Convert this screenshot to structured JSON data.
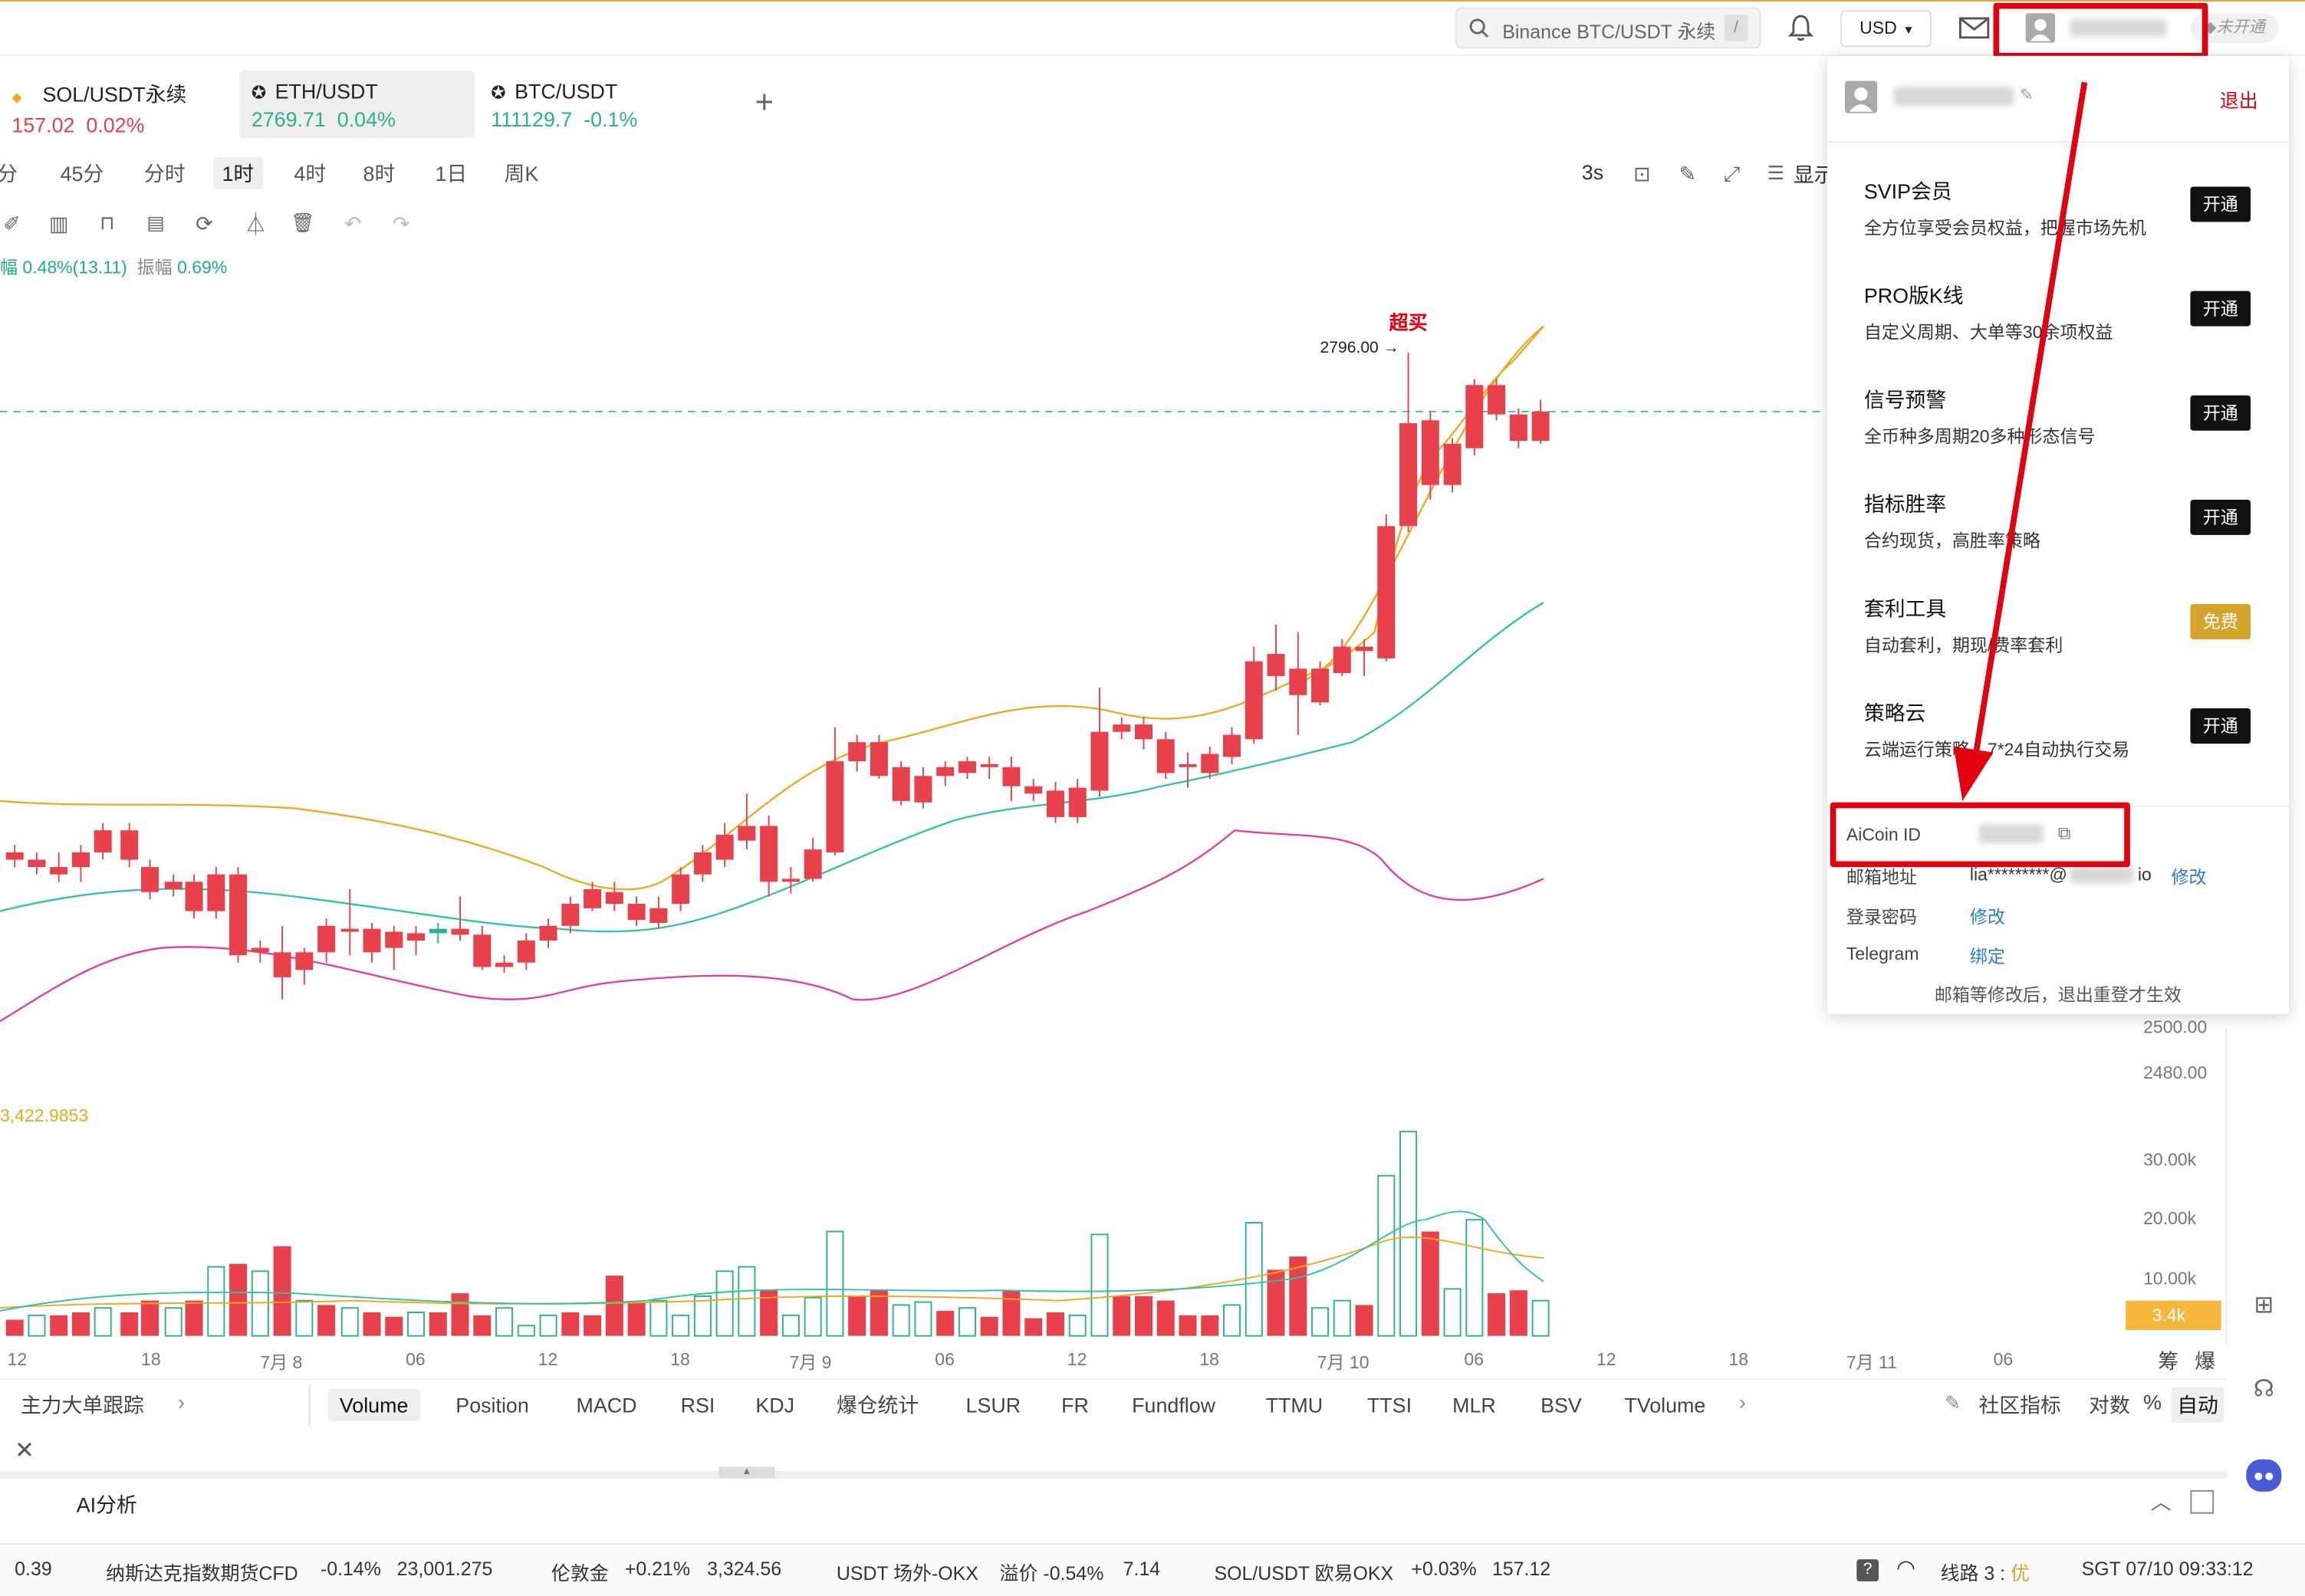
{
  "header": {
    "search_text": "Binance BTC/USDT 永续",
    "search_shortcut": "/",
    "currency": "USD",
    "membership_status": "未开通"
  },
  "tabs": [
    {
      "name": "SOL/USDT永续",
      "price": "157.02",
      "change": "0.02%",
      "dir": "up"
    },
    {
      "name": "ETH/USDT",
      "price": "2769.71",
      "change": "0.04%",
      "dir": "dn"
    },
    {
      "name": "BTC/USDT",
      "price": "111129.7",
      "change": "-0.1%",
      "dir": "dn"
    }
  ],
  "intervals": [
    "分",
    "45分",
    "分时",
    "1时",
    "4时",
    "8时",
    "1日",
    "周K"
  ],
  "active_interval": "1时",
  "chart_toolbar": {
    "refresh": "3s",
    "display": "显示"
  },
  "info_line": {
    "amplitude_change": "幅 0.48%(13.11)",
    "swing_label": "振幅",
    "swing_value": "0.69%"
  },
  "overbought_label": "超买",
  "high_price_label": "2796.00",
  "volume_ma_label": "3,422.9853",
  "volume_marker": "3.4k",
  "y_labels": [
    "2500.00",
    "2480.00",
    "30.00k",
    "20.00k",
    "10.00k"
  ],
  "x_labels": [
    "12",
    "18",
    "7月 8",
    "06",
    "12",
    "18",
    "7月 9",
    "06",
    "12",
    "18",
    "7月 10",
    "06",
    "12",
    "18",
    "7月 11",
    "06"
  ],
  "right_edge_labels": [
    "筹",
    "爆"
  ],
  "indicator_bar": {
    "left": "主力大单跟踪",
    "items": [
      "Volume",
      "Position",
      "MACD",
      "RSI",
      "KDJ",
      "爆仓统计",
      "LSUR",
      "FR",
      "Fundflow",
      "TTMU",
      "TTSI",
      "MLR",
      "BSV",
      "TVolume"
    ],
    "active": "Volume",
    "community": "社区指标",
    "log": "对数",
    "percent": "%",
    "auto": "自动"
  },
  "bottom_panel": {
    "title": "AI分析"
  },
  "ticker": [
    {
      "name": "",
      "change": "",
      "value": "0.39"
    },
    {
      "name": "纳斯达克指数期货CFD",
      "change": "-0.14%",
      "value": "23,001.275"
    },
    {
      "name": "伦敦金",
      "change": "+0.21%",
      "value": "3,324.56"
    },
    {
      "name": "USDT 场外-OKX",
      "change": "溢价 -0.54%",
      "value": "7.14"
    },
    {
      "name": "SOL/USDT 欧易OKX",
      "change": "+0.03%",
      "value": "157.12"
    }
  ],
  "status": {
    "line": "线路 3 : ",
    "quality": "优",
    "time": "SGT 07/10 09:33:12",
    "help": "?"
  },
  "dropdown": {
    "logout": "退出",
    "features": [
      {
        "title": "SVIP会员",
        "desc": "全方位享受会员权益，把握市场先机",
        "button": "开通"
      },
      {
        "title": "PRO版K线",
        "desc": "自定义周期、大单等30余项权益",
        "button": "开通"
      },
      {
        "title": "信号预警",
        "desc": "全币种多周期20多种形态信号",
        "button": "开通"
      },
      {
        "title": "指标胜率",
        "desc": "合约现货，高胜率策略",
        "button": "开通"
      },
      {
        "title": "套利工具",
        "desc": "自动套利，期现/费率套利",
        "button": "免费"
      },
      {
        "title": "策略云",
        "desc": "云端运行策略，7*24自动执行交易",
        "button": "开通"
      }
    ],
    "account": {
      "id_label": "AiCoin ID",
      "email_label": "邮箱地址",
      "email_value": "lia*********@",
      "email_suffix": "io",
      "email_action": "修改",
      "password_label": "登录密码",
      "password_action": "修改",
      "telegram_label": "Telegram",
      "telegram_action": "绑定",
      "note": "邮箱等修改后，退出重登才生效"
    }
  },
  "colors": {
    "up": "#e8414c",
    "down": "#2ab389",
    "ma_orange": "#f2a71b",
    "ma_cyan": "#2ec4a6",
    "ma_magenta": "#e03ca8",
    "annotation_red": "#e3000f"
  }
}
